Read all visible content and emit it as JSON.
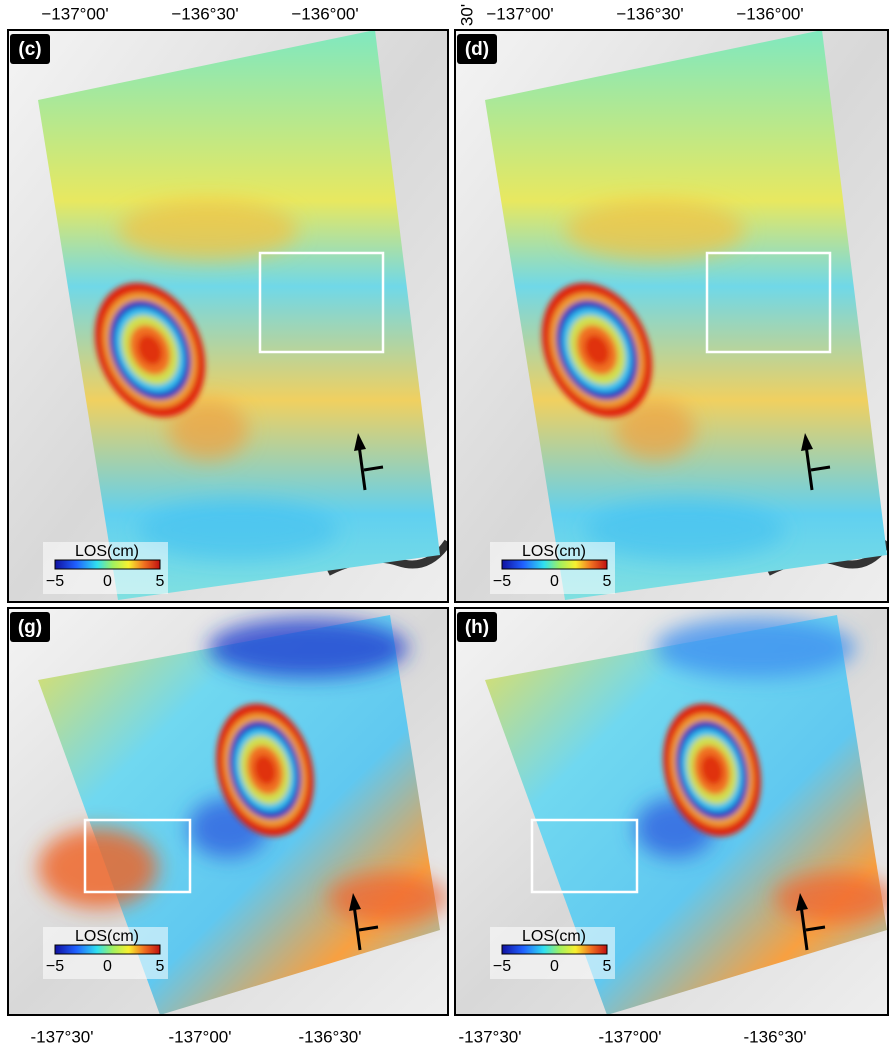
{
  "top_axis": [
    {
      "labels": [
        "−137°00'",
        "−136°30'",
        "−136°00'"
      ]
    },
    {
      "labels": [
        "−137°00'",
        "−136°30'",
        "−136°00'"
      ]
    }
  ],
  "axis_fragment": "30'",
  "panels": [
    {
      "label": "(c)",
      "colorbar": {
        "title": "LOS(cm)",
        "ticks": [
          "−5",
          "0",
          "5"
        ]
      }
    },
    {
      "label": "(d)",
      "colorbar": {
        "title": "LOS(cm)",
        "ticks": [
          "−5",
          "0",
          "5"
        ]
      }
    },
    {
      "label": "(g)",
      "colorbar": {
        "title": "LOS(cm)",
        "ticks": [
          "−5",
          "0",
          "5"
        ]
      }
    },
    {
      "label": "(h)",
      "colorbar": {
        "title": "LOS(cm)",
        "ticks": [
          "−5",
          "0",
          "5"
        ]
      }
    }
  ],
  "bottom_axis": [
    {
      "labels": [
        "-137°30'",
        "-137°00'",
        "-136°30'"
      ]
    },
    {
      "labels": [
        "-137°30'",
        "-137°00'",
        "-136°30'"
      ]
    }
  ]
}
